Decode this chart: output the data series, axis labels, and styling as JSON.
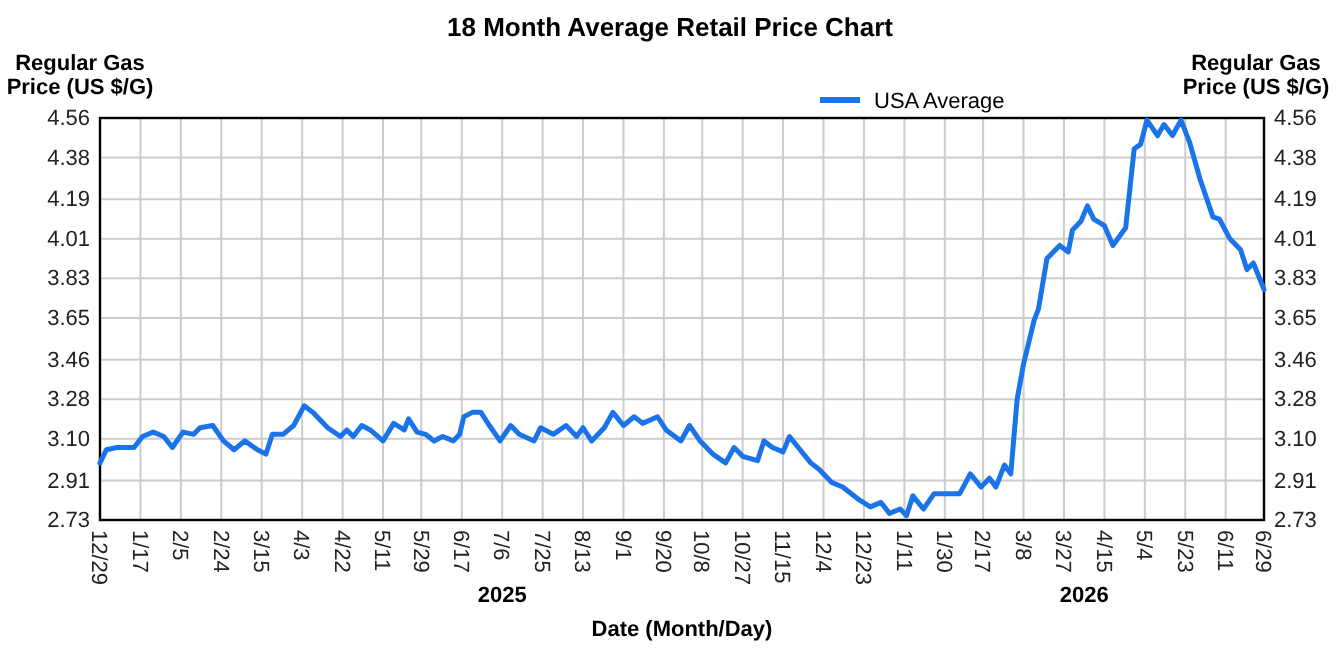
{
  "chart_data": {
    "type": "line",
    "title": "18 Month Average Retail Price Chart",
    "xlabel": "Date (Month/Day)",
    "ylabel": "Regular Gas Price (US $/G)",
    "y2label": "Regular Gas Price (US $/G)",
    "annotations": [
      "2025",
      "2026"
    ],
    "grid": true,
    "legend": "top",
    "line_style": "solid",
    "marker": "none",
    "xlim": [
      "2024-12-29",
      "2026-06-29"
    ],
    "xticks": [
      {
        "value": "2024-12-29",
        "label": "12/29"
      },
      {
        "value": "2025-01-17",
        "label": "1/17"
      },
      {
        "value": "2025-02-05",
        "label": "2/5"
      },
      {
        "value": "2025-02-24",
        "label": "2/24"
      },
      {
        "value": "2025-03-15",
        "label": "3/15"
      },
      {
        "value": "2025-04-03",
        "label": "4/3"
      },
      {
        "value": "2025-04-22",
        "label": "4/22"
      },
      {
        "value": "2025-05-11",
        "label": "5/11"
      },
      {
        "value": "2025-05-29",
        "label": "5/29"
      },
      {
        "value": "2025-06-17",
        "label": "6/17"
      },
      {
        "value": "2025-07-06",
        "label": "7/6"
      },
      {
        "value": "2025-07-25",
        "label": "7/25"
      },
      {
        "value": "2025-08-13",
        "label": "8/13"
      },
      {
        "value": "2025-09-01",
        "label": "9/1"
      },
      {
        "value": "2025-09-20",
        "label": "9/20"
      },
      {
        "value": "2025-10-08",
        "label": "10/8"
      },
      {
        "value": "2025-10-27",
        "label": "10/27"
      },
      {
        "value": "2025-11-15",
        "label": "11/15"
      },
      {
        "value": "2025-12-04",
        "label": "12/4"
      },
      {
        "value": "2025-12-23",
        "label": "12/23"
      },
      {
        "value": "2026-01-11",
        "label": "1/11"
      },
      {
        "value": "2026-01-30",
        "label": "1/30"
      },
      {
        "value": "2026-02-17",
        "label": "2/17"
      },
      {
        "value": "2026-03-08",
        "label": "3/8"
      },
      {
        "value": "2026-03-27",
        "label": "3/27"
      },
      {
        "value": "2026-04-15",
        "label": "4/15"
      },
      {
        "value": "2026-05-04",
        "label": "5/4"
      },
      {
        "value": "2026-05-23",
        "label": "5/23"
      },
      {
        "value": "2026-06-11",
        "label": "6/11"
      },
      {
        "value": "2026-06-29",
        "label": "6/29"
      }
    ],
    "ylim": [
      2.73,
      4.56
    ],
    "yticks": [
      {
        "value": 2.73,
        "label": "2.73"
      },
      {
        "value": 2.91,
        "label": "2.91"
      },
      {
        "value": 3.1,
        "label": "3.10"
      },
      {
        "value": 3.28,
        "label": "3.28"
      },
      {
        "value": 3.46,
        "label": "3.46"
      },
      {
        "value": 3.65,
        "label": "3.65"
      },
      {
        "value": 3.83,
        "label": "3.83"
      },
      {
        "value": 4.01,
        "label": "4.01"
      },
      {
        "value": 4.19,
        "label": "4.19"
      },
      {
        "value": 4.38,
        "label": "4.38"
      },
      {
        "value": 4.56,
        "label": "4.56"
      }
    ],
    "y2lim": [
      2.73,
      4.56
    ],
    "y2ticks": [
      {
        "value": 2.73,
        "label": "2.73"
      },
      {
        "value": 2.91,
        "label": "2.91"
      },
      {
        "value": 3.1,
        "label": "3.10"
      },
      {
        "value": 3.28,
        "label": "3.28"
      },
      {
        "value": 3.46,
        "label": "3.46"
      },
      {
        "value": 3.65,
        "label": "3.65"
      },
      {
        "value": 3.83,
        "label": "3.83"
      },
      {
        "value": 4.01,
        "label": "4.01"
      },
      {
        "value": 4.19,
        "label": "4.19"
      },
      {
        "value": 4.38,
        "label": "4.38"
      },
      {
        "value": 4.56,
        "label": "4.56"
      }
    ],
    "series": [
      {
        "name": "USA Average",
        "color": "#1a73e8",
        "x": [
          "2024-12-29",
          "2025-01-01",
          "2025-01-06",
          "2025-01-11",
          "2025-01-14",
          "2025-01-18",
          "2025-01-23",
          "2025-01-28",
          "2025-02-01",
          "2025-02-06",
          "2025-02-11",
          "2025-02-14",
          "2025-02-20",
          "2025-02-25",
          "2025-03-02",
          "2025-03-07",
          "2025-03-13",
          "2025-03-17",
          "2025-03-20",
          "2025-03-25",
          "2025-03-30",
          "2025-04-04",
          "2025-04-08",
          "2025-04-15",
          "2025-04-21",
          "2025-04-24",
          "2025-04-27",
          "2025-05-01",
          "2025-05-05",
          "2025-05-11",
          "2025-05-16",
          "2025-05-21",
          "2025-05-23",
          "2025-05-27",
          "2025-05-31",
          "2025-06-04",
          "2025-06-08",
          "2025-06-13",
          "2025-06-16",
          "2025-06-18",
          "2025-06-22",
          "2025-06-26",
          "2025-06-30",
          "2025-07-05",
          "2025-07-10",
          "2025-07-14",
          "2025-07-21",
          "2025-07-24",
          "2025-07-30",
          "2025-08-05",
          "2025-08-10",
          "2025-08-13",
          "2025-08-17",
          "2025-08-23",
          "2025-08-27",
          "2025-09-01",
          "2025-09-06",
          "2025-09-10",
          "2025-09-17",
          "2025-09-21",
          "2025-09-28",
          "2025-10-02",
          "2025-10-07",
          "2025-10-13",
          "2025-10-19",
          "2025-10-23",
          "2025-10-27",
          "2025-11-03",
          "2025-11-06",
          "2025-11-10",
          "2025-11-15",
          "2025-11-18",
          "2025-11-23",
          "2025-11-28",
          "2025-12-02",
          "2025-12-08",
          "2025-12-13",
          "2025-12-21",
          "2025-12-26",
          "2025-12-31",
          "2026-01-04",
          "2026-01-09",
          "2026-01-12",
          "2026-01-15",
          "2026-01-20",
          "2026-01-25",
          "2026-01-31",
          "2026-02-06",
          "2026-02-11",
          "2026-02-16",
          "2026-02-20",
          "2026-02-23",
          "2026-02-27",
          "2026-03-02",
          "2026-03-05",
          "2026-03-08",
          "2026-03-13",
          "2026-03-15",
          "2026-03-19",
          "2026-03-22",
          "2026-03-25",
          "2026-03-29",
          "2026-03-31",
          "2026-04-04",
          "2026-04-07",
          "2026-04-10",
          "2026-04-15",
          "2026-04-19",
          "2026-04-25",
          "2026-04-29",
          "2026-05-02",
          "2026-05-05",
          "2026-05-10",
          "2026-05-13",
          "2026-05-17",
          "2026-05-21",
          "2026-05-25",
          "2026-05-30",
          "2026-06-05",
          "2026-06-08",
          "2026-06-13",
          "2026-06-18",
          "2026-06-21",
          "2026-06-24",
          "2026-06-29"
        ],
        "values": [
          2.99,
          3.05,
          3.06,
          3.06,
          3.06,
          3.11,
          3.13,
          3.11,
          3.06,
          3.13,
          3.12,
          3.15,
          3.16,
          3.09,
          3.05,
          3.09,
          3.05,
          3.03,
          3.12,
          3.12,
          3.16,
          3.25,
          3.22,
          3.15,
          3.11,
          3.14,
          3.11,
          3.16,
          3.14,
          3.09,
          3.17,
          3.14,
          3.19,
          3.13,
          3.12,
          3.09,
          3.11,
          3.09,
          3.12,
          3.2,
          3.22,
          3.22,
          3.16,
          3.09,
          3.16,
          3.12,
          3.09,
          3.15,
          3.12,
          3.16,
          3.11,
          3.15,
          3.09,
          3.15,
          3.22,
          3.16,
          3.2,
          3.17,
          3.2,
          3.14,
          3.09,
          3.16,
          3.09,
          3.03,
          2.99,
          3.06,
          3.02,
          3.0,
          3.09,
          3.06,
          3.04,
          3.11,
          3.05,
          2.99,
          2.96,
          2.9,
          2.88,
          2.82,
          2.79,
          2.81,
          2.76,
          2.78,
          2.75,
          2.84,
          2.78,
          2.85,
          2.85,
          2.85,
          2.94,
          2.88,
          2.92,
          2.88,
          2.98,
          2.94,
          3.28,
          3.44,
          3.64,
          3.69,
          3.92,
          3.95,
          3.98,
          3.95,
          4.05,
          4.09,
          4.16,
          4.1,
          4.07,
          3.98,
          4.06,
          4.42,
          4.44,
          4.55,
          4.48,
          4.53,
          4.48,
          4.55,
          4.45,
          4.28,
          4.11,
          4.1,
          4.01,
          3.96,
          3.87,
          3.9,
          3.78
        ]
      }
    ]
  }
}
